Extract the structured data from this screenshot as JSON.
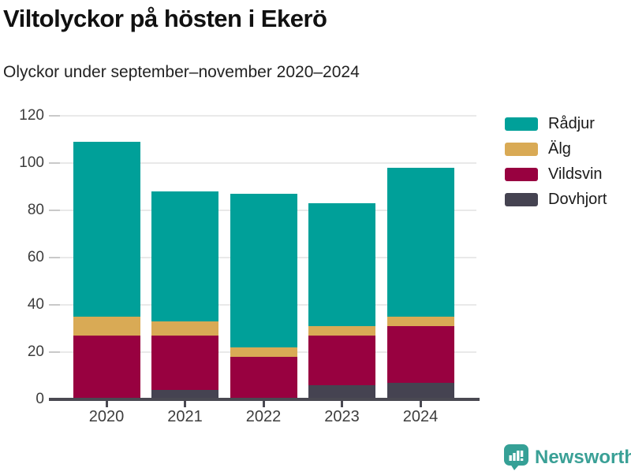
{
  "header": {
    "title": "Viltolyckor på hösten i Ekerö",
    "subtitle": "Olyckor under september–november 2020–2024"
  },
  "chart_data": {
    "type": "bar",
    "stacked": true,
    "title": "Viltolyckor på hösten i Ekerö",
    "subtitle": "Olyckor under september–november 2020–2024",
    "categories": [
      "2020",
      "2021",
      "2022",
      "2023",
      "2024"
    ],
    "series": [
      {
        "name": "Rådjur",
        "color": "#00a099",
        "values": [
          74,
          55,
          65,
          52,
          63
        ]
      },
      {
        "name": "Älg",
        "color": "#d9aa55",
        "values": [
          8,
          6,
          4,
          4,
          4
        ]
      },
      {
        "name": "Vildsvin",
        "color": "#980140",
        "values": [
          27,
          23,
          18,
          21,
          24
        ]
      },
      {
        "name": "Dovhjort",
        "color": "#454351",
        "values": [
          0,
          4,
          0,
          6,
          7
        ]
      }
    ],
    "totals": [
      109,
      88,
      87,
      83,
      98
    ],
    "xlabel": "",
    "ylabel": "",
    "ylim": [
      0,
      120
    ],
    "ytick_step": 20,
    "grid": true,
    "legend_position": "right",
    "axis_color": "#4a4952",
    "gridline_color": "#e9e9e9"
  },
  "branding": {
    "name": "Newsworthy",
    "logo_icon": "newsworthy-bubble-chart-icon",
    "color": "#3aa096"
  }
}
